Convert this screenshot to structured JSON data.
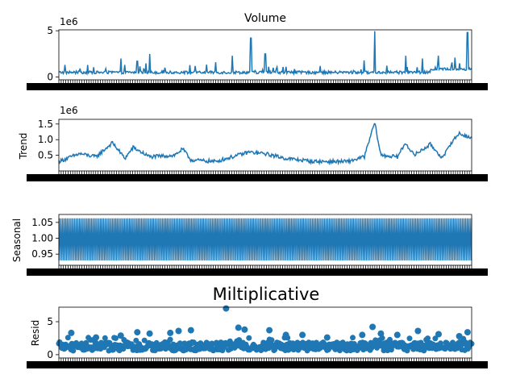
{
  "figure": {
    "suptitle": "Miltiplicative",
    "line_color": "#1f77b4"
  },
  "chart_data": [
    {
      "type": "line",
      "title": "Volume",
      "ylabel": "",
      "offset_text": "1e6",
      "yticks": [
        0,
        5
      ],
      "ylim": [
        -0.3,
        5.1
      ],
      "n_points": 546,
      "baseline": 0.35,
      "spikes": [
        {
          "x": 0.07,
          "y": 1.3
        },
        {
          "x": 0.15,
          "y": 2.0
        },
        {
          "x": 0.19,
          "y": 1.7
        },
        {
          "x": 0.22,
          "y": 2.5
        },
        {
          "x": 0.33,
          "y": 1.2
        },
        {
          "x": 0.38,
          "y": 1.6
        },
        {
          "x": 0.42,
          "y": 2.3
        },
        {
          "x": 0.465,
          "y": 4.2
        },
        {
          "x": 0.5,
          "y": 2.5
        },
        {
          "x": 0.55,
          "y": 1.1
        },
        {
          "x": 0.74,
          "y": 1.8
        },
        {
          "x": 0.765,
          "y": 4.95
        },
        {
          "x": 0.84,
          "y": 2.3
        },
        {
          "x": 0.88,
          "y": 2.0
        },
        {
          "x": 0.92,
          "y": 2.3
        },
        {
          "x": 0.96,
          "y": 2.1
        },
        {
          "x": 0.99,
          "y": 4.8
        }
      ]
    },
    {
      "type": "line",
      "title": "",
      "ylabel": "Trend",
      "offset_text": "1e6",
      "yticks": [
        0.5,
        1.0,
        1.5
      ],
      "ytick_labels": [
        "0.5",
        "1.0",
        "1.5"
      ],
      "ylim": [
        0.0,
        1.65
      ],
      "n_points": 540,
      "segments": [
        {
          "x": 0.0,
          "y": 0.3
        },
        {
          "x": 0.05,
          "y": 0.55
        },
        {
          "x": 0.09,
          "y": 0.45
        },
        {
          "x": 0.13,
          "y": 0.9
        },
        {
          "x": 0.16,
          "y": 0.4
        },
        {
          "x": 0.18,
          "y": 0.75
        },
        {
          "x": 0.22,
          "y": 0.45
        },
        {
          "x": 0.28,
          "y": 0.5
        },
        {
          "x": 0.3,
          "y": 0.7
        },
        {
          "x": 0.32,
          "y": 0.35
        },
        {
          "x": 0.38,
          "y": 0.3
        },
        {
          "x": 0.42,
          "y": 0.45
        },
        {
          "x": 0.46,
          "y": 0.6
        },
        {
          "x": 0.5,
          "y": 0.55
        },
        {
          "x": 0.55,
          "y": 0.4
        },
        {
          "x": 0.62,
          "y": 0.3
        },
        {
          "x": 0.7,
          "y": 0.3
        },
        {
          "x": 0.74,
          "y": 0.45
        },
        {
          "x": 0.765,
          "y": 1.55
        },
        {
          "x": 0.78,
          "y": 0.5
        },
        {
          "x": 0.82,
          "y": 0.45
        },
        {
          "x": 0.84,
          "y": 0.9
        },
        {
          "x": 0.86,
          "y": 0.5
        },
        {
          "x": 0.9,
          "y": 0.85
        },
        {
          "x": 0.93,
          "y": 0.4
        },
        {
          "x": 0.95,
          "y": 0.9
        },
        {
          "x": 0.97,
          "y": 1.2
        },
        {
          "x": 1.0,
          "y": 1.05
        }
      ]
    },
    {
      "type": "line",
      "title": "",
      "ylabel": "Seasonal",
      "yticks": [
        0.95,
        1.0,
        1.05
      ],
      "ytick_labels": [
        "0.95",
        "1.00",
        "1.05"
      ],
      "ylim": [
        0.915,
        1.075
      ],
      "n_points": 546,
      "low": 0.93,
      "high": 1.063
    },
    {
      "type": "scatter",
      "title": "",
      "ylabel": "Resid",
      "yticks": [
        0,
        5
      ],
      "ylim": [
        -0.5,
        7.2
      ],
      "n_points": 546,
      "outliers": [
        {
          "x": 0.03,
          "y": 3.3
        },
        {
          "x": 0.09,
          "y": 2.6
        },
        {
          "x": 0.15,
          "y": 2.9
        },
        {
          "x": 0.19,
          "y": 3.4
        },
        {
          "x": 0.22,
          "y": 3.2
        },
        {
          "x": 0.27,
          "y": 3.3
        },
        {
          "x": 0.29,
          "y": 3.6
        },
        {
          "x": 0.32,
          "y": 3.7
        },
        {
          "x": 0.405,
          "y": 7.0
        },
        {
          "x": 0.435,
          "y": 4.1
        },
        {
          "x": 0.45,
          "y": 3.8
        },
        {
          "x": 0.51,
          "y": 3.7
        },
        {
          "x": 0.55,
          "y": 3.0
        },
        {
          "x": 0.59,
          "y": 3.0
        },
        {
          "x": 0.65,
          "y": 2.6
        },
        {
          "x": 0.735,
          "y": 3.0
        },
        {
          "x": 0.76,
          "y": 4.2
        },
        {
          "x": 0.78,
          "y": 3.2
        },
        {
          "x": 0.82,
          "y": 3.0
        },
        {
          "x": 0.87,
          "y": 3.6
        },
        {
          "x": 0.92,
          "y": 3.1
        },
        {
          "x": 0.97,
          "y": 2.8
        },
        {
          "x": 0.99,
          "y": 3.4
        }
      ]
    }
  ]
}
